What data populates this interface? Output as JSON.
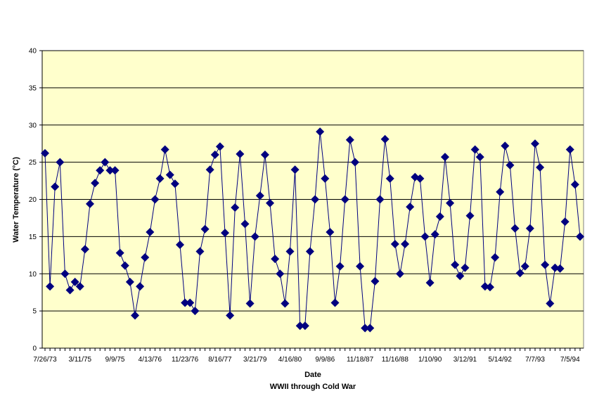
{
  "chart_data": {
    "type": "line",
    "title": "",
    "xlabel": "Date",
    "xlabel_subtitle": "WWII through Cold War",
    "ylabel": "Water Temperature (°C)",
    "ylim": [
      0,
      40
    ],
    "yticks": [
      "0",
      "5",
      "10",
      "15",
      "20",
      "25",
      "30",
      "35",
      "40"
    ],
    "xticks": [
      "7/26/73",
      "3/11/75",
      "9/9/75",
      "4/13/76",
      "11/23/76",
      "8/16/77",
      "3/21/79",
      "4/16/80",
      "9/9/86",
      "11/18/87",
      "11/16/88",
      "1/10/90",
      "3/12/91",
      "5/14/92",
      "7/7/93",
      "7/5/94"
    ],
    "grid": true,
    "legend": "none",
    "marker": "diamond",
    "colors": {
      "series": "#00007F",
      "plot_background": "#FFFFCC",
      "gridline": "#000000"
    },
    "series": [
      {
        "values": [
          26.2,
          8.3,
          21.7,
          25.0,
          10.0,
          7.8,
          8.9,
          8.3,
          13.3,
          19.4,
          22.2,
          23.9,
          25.0,
          23.9,
          23.9,
          12.8,
          11.1,
          8.9,
          4.4,
          8.3,
          12.2,
          15.6,
          20.0,
          22.8,
          26.7,
          23.3,
          22.1,
          13.9,
          6.1,
          6.1,
          5.0,
          13.0,
          16.0,
          24.0,
          26.0,
          27.1,
          15.5,
          4.4,
          18.9,
          26.1,
          16.7,
          6.0,
          15.0,
          20.5,
          26.0,
          19.5,
          12.0,
          10.0,
          6.0,
          13.0,
          24.0,
          3.0,
          3.0,
          13.0,
          20.0,
          29.1,
          22.8,
          15.6,
          6.1,
          11.0,
          20.0,
          28.0,
          25.0,
          11.0,
          2.7,
          2.7,
          9.0,
          20.0,
          28.1,
          22.8,
          14.0,
          10.0,
          14.0,
          19.0,
          23.0,
          22.8,
          15.0,
          8.8,
          15.3,
          17.7,
          25.7,
          19.5,
          11.2,
          9.7,
          10.8,
          17.8,
          26.7,
          25.7,
          8.3,
          8.2,
          12.2,
          21.0,
          27.2,
          24.6,
          16.1,
          10.1,
          11.0,
          16.1,
          27.5,
          24.3,
          11.2,
          6.0,
          10.8,
          10.7,
          17.0,
          26.7,
          22.0,
          15.0
        ]
      }
    ]
  }
}
